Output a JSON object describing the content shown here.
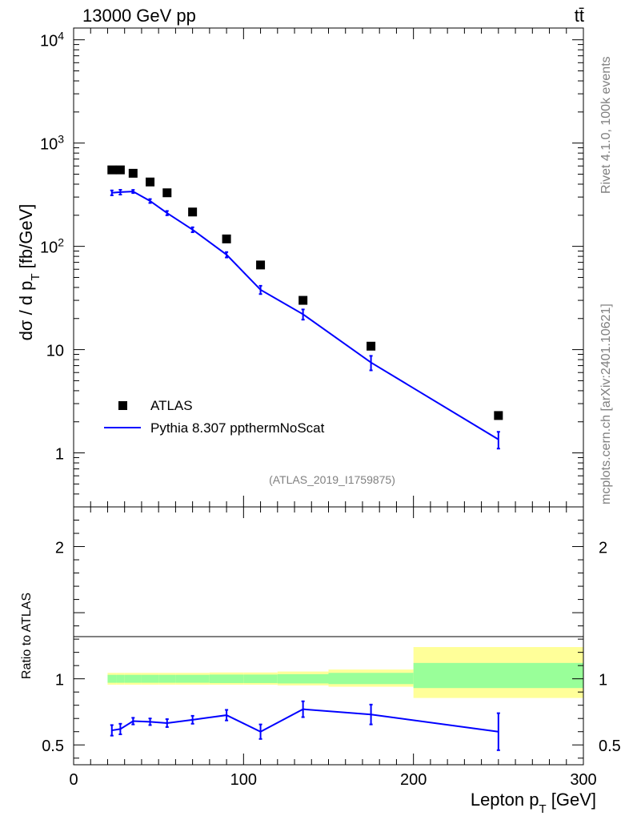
{
  "header": {
    "energy_label": "13000 GeV pp",
    "process_label": "tt̄"
  },
  "side": {
    "rivet_label": "Rivet 4.1.0,  100k events",
    "site_label": "mcplots.cern.ch [arXiv:2401.10621]"
  },
  "chart_data": [
    {
      "type": "scatter",
      "title": "",
      "ylabel": "dσ / d pT [fb/GeV]",
      "xlabel": "",
      "yscale": "log",
      "xlim": [
        0,
        300
      ],
      "ylim": [
        0.3,
        13000
      ],
      "yticks": [
        {
          "value": 1,
          "label": "1"
        },
        {
          "value": 10,
          "label": "10"
        },
        {
          "value": 100,
          "label": "10^2"
        },
        {
          "value": 1000,
          "label": "10^3"
        },
        {
          "value": 10000,
          "label": "10^4"
        }
      ],
      "watermark": "(ATLAS_2019_I1759875)",
      "legend": {
        "position": "bottom-left",
        "entries": [
          "ATLAS",
          "Pythia 8.307 ppthermNoScat"
        ]
      },
      "series": [
        {
          "name": "ATLAS",
          "style": "markers",
          "color": "#000000",
          "x": [
            22.5,
            27.5,
            35,
            45,
            55,
            70,
            90,
            110,
            135,
            175,
            250
          ],
          "y": [
            550,
            550,
            510,
            420,
            330,
            215,
            118,
            66,
            30,
            10.8,
            2.3
          ]
        },
        {
          "name": "Pythia 8.307 ppthermNoScat",
          "style": "line",
          "color": "#0000ff",
          "x": [
            22.5,
            27.5,
            35,
            45,
            55,
            70,
            90,
            110,
            135,
            175,
            250
          ],
          "y": [
            330,
            335,
            340,
            275,
            210,
            145,
            83,
            38,
            22,
            7.5,
            1.35
          ],
          "yerr": [
            18,
            18,
            12,
            12,
            10,
            8,
            5,
            3.5,
            2.5,
            1.2,
            0.25
          ]
        }
      ]
    },
    {
      "type": "line",
      "ylabel": "Ratio to ATLAS",
      "xlabel": "Lepton pT [GeV]",
      "xlim": [
        0,
        300
      ],
      "ylim": [
        0.35,
        2.3
      ],
      "xticks": [
        0,
        100,
        200,
        300
      ],
      "yticks": [
        {
          "value": 0.5,
          "label": "0.5"
        },
        {
          "value": 1,
          "label": "1"
        },
        {
          "value": 2,
          "label": "2"
        }
      ],
      "bands": {
        "yellow_color": "#ffff99",
        "green_color": "#99ff99",
        "bins": [
          {
            "x0": 20,
            "x1": 25,
            "yellow": [
              0.955,
              1.045
            ],
            "green": [
              0.97,
              1.03
            ]
          },
          {
            "x0": 25,
            "x1": 30,
            "yellow": [
              0.955,
              1.045
            ],
            "green": [
              0.97,
              1.03
            ]
          },
          {
            "x0": 30,
            "x1": 40,
            "yellow": [
              0.955,
              1.045
            ],
            "green": [
              0.97,
              1.03
            ]
          },
          {
            "x0": 40,
            "x1": 50,
            "yellow": [
              0.955,
              1.045
            ],
            "green": [
              0.97,
              1.03
            ]
          },
          {
            "x0": 50,
            "x1": 60,
            "yellow": [
              0.955,
              1.045
            ],
            "green": [
              0.97,
              1.03
            ]
          },
          {
            "x0": 60,
            "x1": 80,
            "yellow": [
              0.955,
              1.045
            ],
            "green": [
              0.97,
              1.03
            ]
          },
          {
            "x0": 80,
            "x1": 100,
            "yellow": [
              0.955,
              1.048
            ],
            "green": [
              0.968,
              1.032
            ]
          },
          {
            "x0": 100,
            "x1": 120,
            "yellow": [
              0.955,
              1.048
            ],
            "green": [
              0.968,
              1.032
            ]
          },
          {
            "x0": 120,
            "x1": 150,
            "yellow": [
              0.95,
              1.055
            ],
            "green": [
              0.965,
              1.035
            ]
          },
          {
            "x0": 150,
            "x1": 200,
            "yellow": [
              0.94,
              1.07
            ],
            "green": [
              0.96,
              1.045
            ]
          },
          {
            "x0": 200,
            "x1": 300,
            "yellow": [
              0.855,
              1.24
            ],
            "green": [
              0.93,
              1.12
            ]
          }
        ]
      },
      "series": [
        {
          "name": "Pythia 8.307 ppthermNoScat",
          "color": "#0000ff",
          "x": [
            22.5,
            27.5,
            35,
            45,
            55,
            70,
            90,
            110,
            135,
            175,
            250
          ],
          "y": [
            0.61,
            0.62,
            0.68,
            0.675,
            0.665,
            0.69,
            0.725,
            0.6,
            0.77,
            0.73,
            0.6
          ],
          "yerr": [
            0.04,
            0.04,
            0.025,
            0.025,
            0.03,
            0.03,
            0.04,
            0.055,
            0.06,
            0.075,
            0.14
          ]
        }
      ]
    }
  ]
}
